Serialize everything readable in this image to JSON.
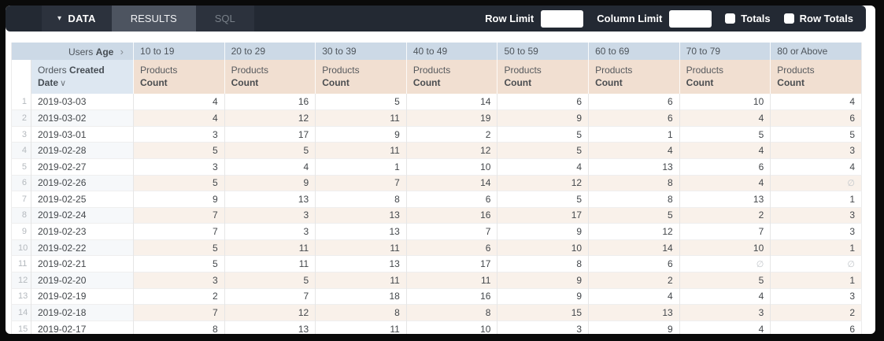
{
  "toolbar": {
    "tabs": [
      {
        "label": "DATA"
      },
      {
        "label": "RESULTS"
      },
      {
        "label": "SQL"
      }
    ],
    "active_tab": "RESULTS",
    "row_limit_label": "Row Limit",
    "row_limit_value": "",
    "column_limit_label": "Column Limit",
    "column_limit_value": "",
    "totals_label": "Totals",
    "totals_checked": false,
    "row_totals_label": "Row Totals",
    "row_totals_checked": false
  },
  "icons": {
    "data_tab_caret": "▾",
    "pivot_chevron": "›",
    "sort_chevron": "∨"
  },
  "colors": {
    "topbar_bg": "#232933",
    "active_tab_bg": "#4d5460",
    "pivot_header_bg": "#ccd9e6",
    "dimension_header_bg": "#dde7f1",
    "measure_header_bg": "#f1dfd1",
    "stripe_dimension_bg": "#f6f8fa",
    "stripe_measure_bg": "#f9f1ea"
  },
  "table": {
    "pivot_entity": "Users",
    "pivot_field": "Age",
    "pivot_values": [
      "10 to 19",
      "20 to 29",
      "30 to 39",
      "40 to 49",
      "50 to 59",
      "60 to 69",
      "70 to 79",
      "80 or Above"
    ],
    "dimension_entity": "Orders",
    "dimension_field": "Created Date",
    "measure_entity": "Products",
    "measure_field": "Count",
    "null_symbol": "∅",
    "rows": [
      {
        "num": 1,
        "date": "2019-03-03",
        "values": [
          4,
          16,
          5,
          14,
          6,
          6,
          10,
          4
        ]
      },
      {
        "num": 2,
        "date": "2019-03-02",
        "values": [
          4,
          12,
          11,
          19,
          9,
          6,
          4,
          6
        ]
      },
      {
        "num": 3,
        "date": "2019-03-01",
        "values": [
          3,
          17,
          9,
          2,
          5,
          1,
          5,
          5
        ]
      },
      {
        "num": 4,
        "date": "2019-02-28",
        "values": [
          5,
          5,
          11,
          12,
          5,
          4,
          4,
          3
        ]
      },
      {
        "num": 5,
        "date": "2019-02-27",
        "values": [
          3,
          4,
          1,
          10,
          4,
          13,
          6,
          4
        ]
      },
      {
        "num": 6,
        "date": "2019-02-26",
        "values": [
          5,
          9,
          7,
          14,
          12,
          8,
          4,
          null
        ]
      },
      {
        "num": 7,
        "date": "2019-02-25",
        "values": [
          9,
          13,
          8,
          6,
          5,
          8,
          13,
          1
        ]
      },
      {
        "num": 8,
        "date": "2019-02-24",
        "values": [
          7,
          3,
          13,
          16,
          17,
          5,
          2,
          3
        ]
      },
      {
        "num": 9,
        "date": "2019-02-23",
        "values": [
          7,
          3,
          13,
          7,
          9,
          12,
          7,
          3
        ]
      },
      {
        "num": 10,
        "date": "2019-02-22",
        "values": [
          5,
          11,
          11,
          6,
          10,
          14,
          10,
          1
        ]
      },
      {
        "num": 11,
        "date": "2019-02-21",
        "values": [
          5,
          11,
          13,
          17,
          8,
          6,
          null,
          null
        ]
      },
      {
        "num": 12,
        "date": "2019-02-20",
        "values": [
          3,
          5,
          11,
          11,
          9,
          2,
          5,
          1
        ]
      },
      {
        "num": 13,
        "date": "2019-02-19",
        "values": [
          2,
          7,
          18,
          16,
          9,
          4,
          4,
          3
        ]
      },
      {
        "num": 14,
        "date": "2019-02-18",
        "values": [
          7,
          12,
          8,
          8,
          15,
          13,
          3,
          2
        ]
      },
      {
        "num": 15,
        "date": "2019-02-17",
        "values": [
          8,
          13,
          11,
          10,
          3,
          9,
          4,
          6
        ]
      }
    ]
  }
}
